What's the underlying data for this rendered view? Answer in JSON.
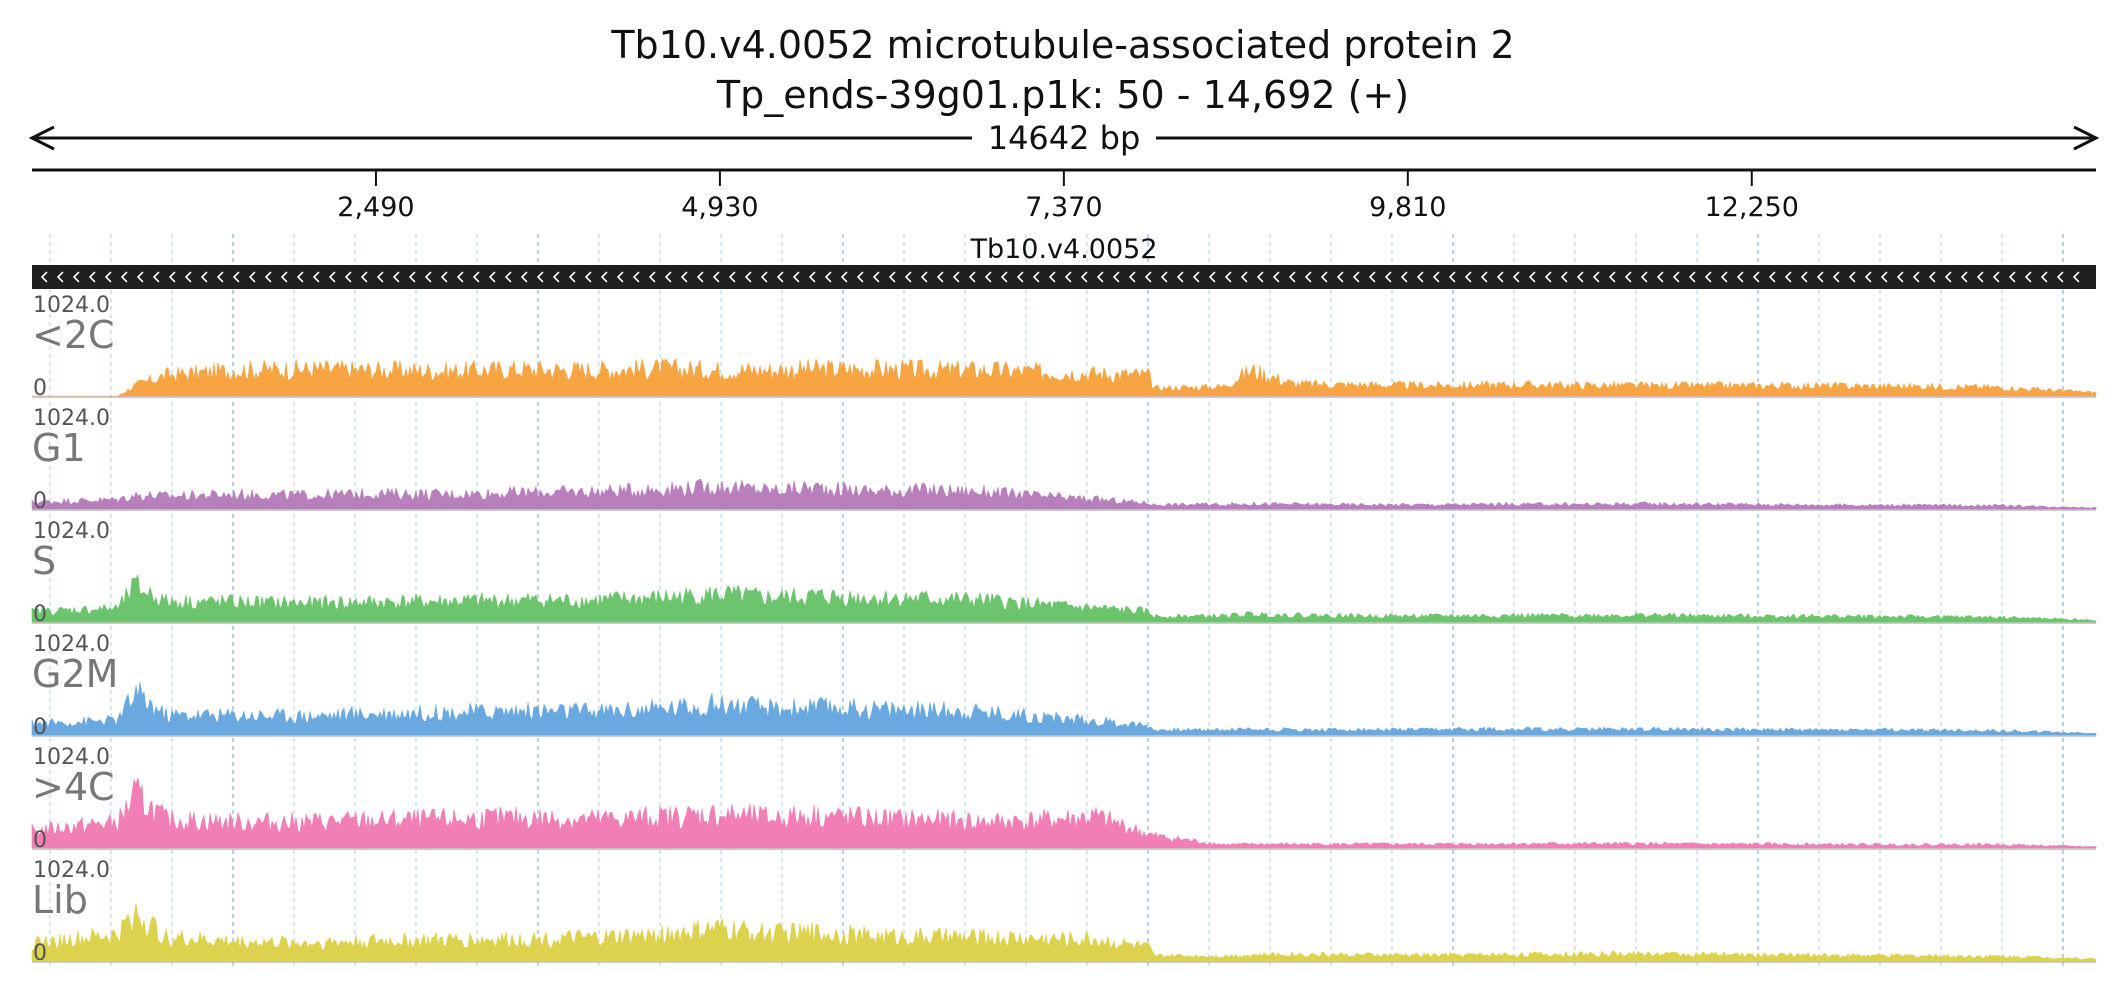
{
  "title": "Tb10.v4.0052  microtubule-associated protein 2",
  "subtitle": "Tp_ends-39g01.p1k: 50 - 14,692 (+)",
  "chart_data": {
    "type": "area",
    "region": {
      "start": 50,
      "end": 14692,
      "length_label": "14642 bp"
    },
    "x_ticks": [
      {
        "value": 2490,
        "label": "2,490"
      },
      {
        "value": 4930,
        "label": "4,930"
      },
      {
        "value": 7370,
        "label": "7,370"
      },
      {
        "value": 9810,
        "label": "9,810"
      },
      {
        "value": 12250,
        "label": "12,250"
      }
    ],
    "gene": {
      "name": "Tb10.v4.0052",
      "start": 50,
      "end": 14692,
      "strand": "-"
    },
    "y_range": [
      0,
      1024.0
    ],
    "y_max_label": "1024.0",
    "y_min_label": "0",
    "x": [
      50,
      660,
      780,
      1000,
      1500,
      2000,
      2500,
      3000,
      3500,
      4000,
      4500,
      4930,
      5300,
      5600,
      6000,
      6400,
      6800,
      7200,
      7600,
      7970,
      8010,
      8500,
      8700,
      9000,
      9500,
      10000,
      10500,
      11000,
      11500,
      12000,
      12500,
      13000,
      13500,
      14000,
      14692
    ],
    "tracks": [
      {
        "name": "<2C",
        "color": "#f7a443",
        "values": [
          0,
          0,
          120,
          240,
          300,
          310,
          300,
          290,
          310,
          300,
          320,
          300,
          300,
          310,
          310,
          300,
          300,
          280,
          260,
          240,
          90,
          110,
          300,
          140,
          130,
          120,
          130,
          125,
          120,
          120,
          120,
          115,
          110,
          100,
          40
        ]
      },
      {
        "name": "G1",
        "color": "#b77fbb",
        "values": [
          80,
          110,
          160,
          150,
          170,
          160,
          180,
          170,
          190,
          200,
          230,
          260,
          220,
          250,
          210,
          220,
          200,
          150,
          110,
          70,
          50,
          55,
          60,
          55,
          50,
          50,
          55,
          55,
          60,
          55,
          50,
          45,
          45,
          40,
          15
        ]
      },
      {
        "name": "S",
        "color": "#6cc46d",
        "values": [
          120,
          160,
          420,
          240,
          230,
          220,
          230,
          240,
          250,
          250,
          280,
          320,
          280,
          300,
          280,
          270,
          250,
          200,
          160,
          120,
          65,
          70,
          90,
          80,
          70,
          70,
          75,
          75,
          80,
          70,
          70,
          65,
          60,
          55,
          20
        ]
      },
      {
        "name": "G2M",
        "color": "#6aa9df",
        "values": [
          130,
          170,
          480,
          230,
          230,
          220,
          250,
          260,
          280,
          270,
          300,
          360,
          300,
          320,
          300,
          290,
          270,
          210,
          160,
          110,
          60,
          60,
          70,
          60,
          60,
          60,
          70,
          65,
          70,
          65,
          60,
          60,
          55,
          50,
          20
        ]
      },
      {
        "name": ">4C",
        "color": "#f17fb5",
        "values": [
          200,
          300,
          620,
          330,
          300,
          300,
          320,
          330,
          350,
          330,
          360,
          390,
          350,
          380,
          340,
          330,
          300,
          320,
          360,
          160,
          140,
          40,
          45,
          45,
          45,
          45,
          50,
          50,
          50,
          45,
          45,
          40,
          40,
          40,
          15
        ]
      },
      {
        "name": "Lib",
        "color": "#ddd24d",
        "values": [
          200,
          300,
          560,
          270,
          220,
          210,
          230,
          240,
          250,
          260,
          300,
          370,
          320,
          330,
          290,
          280,
          270,
          260,
          250,
          160,
          60,
          60,
          70,
          80,
          70,
          70,
          75,
          80,
          85,
          75,
          70,
          65,
          60,
          55,
          25
        ]
      }
    ]
  }
}
